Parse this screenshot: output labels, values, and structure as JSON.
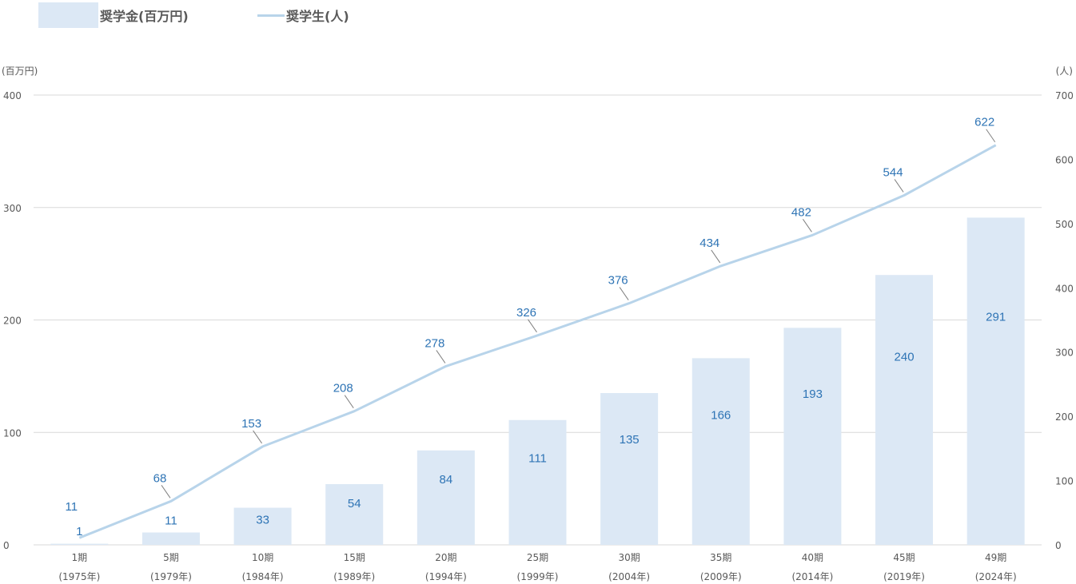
{
  "legend": {
    "bar_label": "奨学金(百万円)",
    "line_label": "奨学生(人)"
  },
  "colors": {
    "bar": "#dce8f5",
    "line": "#b8d4ea",
    "data_label": "#2e74b5",
    "axis_text": "#595959",
    "grid": "#d9d9d9"
  },
  "chart_data": {
    "type": "bar",
    "categories": [
      [
        "1期",
        "(1975年)"
      ],
      [
        "5期",
        "(1979年)"
      ],
      [
        "10期",
        "(1984年)"
      ],
      [
        "15期",
        "(1989年)"
      ],
      [
        "20期",
        "(1994年)"
      ],
      [
        "25期",
        "(1999年)"
      ],
      [
        "30期",
        "(2004年)"
      ],
      [
        "35期",
        "(2009年)"
      ],
      [
        "40期",
        "(2014年)"
      ],
      [
        "45期",
        "(2019年)"
      ],
      [
        "49期",
        "(2024年)"
      ]
    ],
    "series": [
      {
        "name": "奨学金(百万円)",
        "type": "bar",
        "axis": "left",
        "values": [
          1,
          11,
          33,
          54,
          84,
          111,
          135,
          166,
          193,
          240,
          291
        ]
      },
      {
        "name": "奨学生(人)",
        "type": "line",
        "axis": "right",
        "values": [
          11,
          68,
          153,
          208,
          278,
          326,
          376,
          434,
          482,
          544,
          622
        ]
      }
    ],
    "y_left": {
      "label": "(百万円)",
      "lim": [
        0,
        400
      ],
      "ticks": [
        0,
        100,
        200,
        300,
        400
      ]
    },
    "y_right": {
      "label": "(人)",
      "lim": [
        0,
        700
      ],
      "ticks": [
        0,
        100,
        200,
        300,
        400,
        500,
        600,
        700
      ]
    },
    "grid": true,
    "legend_position": "top-left"
  }
}
